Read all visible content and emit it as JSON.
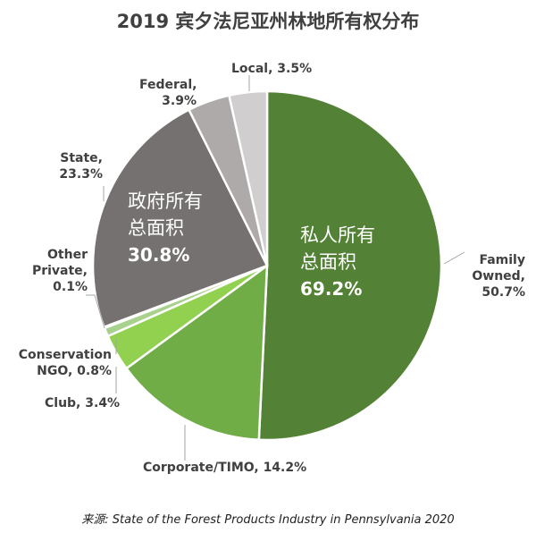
{
  "chart_data": {
    "type": "pie",
    "title": "2019 宾夕法尼亚州林地所有权分布",
    "slices": [
      {
        "label": "Family Owned",
        "value": 50.7,
        "text": "Family Owned, 50.7%",
        "color": "#538135"
      },
      {
        "label": "Corporate/TIMO",
        "value": 14.2,
        "text": "Corporate/TIMO, 14.2%",
        "color": "#70ad47"
      },
      {
        "label": "Club",
        "value": 3.4,
        "text": "Club, 3.4%",
        "color": "#92d050"
      },
      {
        "label": "Conservation NGO",
        "value": 0.8,
        "text": "Conservation NGO, 0.8%",
        "color": "#a9d18e"
      },
      {
        "label": "Other Private",
        "value": 0.1,
        "text": "Other Private, 0.1%",
        "color": "#c5e0b4"
      },
      {
        "label": "State",
        "value": 23.3,
        "text": "State, 23.3%",
        "color": "#767171"
      },
      {
        "label": "Federal",
        "value": 3.9,
        "text": "Federal, 3.9%",
        "color": "#aeaaaa"
      },
      {
        "label": "Local",
        "value": 3.5,
        "text": "Local, 3.5%",
        "color": "#d0cece"
      }
    ],
    "group_labels": {
      "private": {
        "line1": "私人所有",
        "line2": "总面积",
        "value": "69.2%"
      },
      "government": {
        "line1": "政府所有",
        "line2": "总面积",
        "value": "30.8%"
      }
    },
    "start": "12 o'clock, clockwise"
  },
  "source": "来源: State of the Forest Products Industry in Pennsylvania 2020"
}
